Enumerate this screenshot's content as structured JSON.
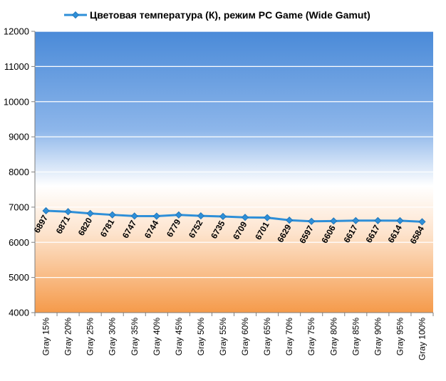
{
  "chart_data": {
    "type": "line",
    "title": "",
    "xlabel": "",
    "ylabel": "",
    "ylim": [
      4000,
      12000
    ],
    "y_ticks": [
      "4000",
      "5000",
      "6000",
      "7000",
      "8000",
      "9000",
      "10000",
      "11000",
      "12000"
    ],
    "grid": true,
    "legend_position": "top",
    "categories": [
      "Gray 15%",
      "Gray 20%",
      "Gray 25%",
      "Gray 30%",
      "Gray 35%",
      "Gray 40%",
      "Gray 45%",
      "Gray 50%",
      "Gray 55%",
      "Gray 60%",
      "Gray 65%",
      "Gray 70%",
      "Gray 75%",
      "Gray 80%",
      "Gray 85%",
      "Gray 90%",
      "Gray 95%",
      "Gray 100%"
    ],
    "series": [
      {
        "name": "Цветовая температура (К), режим PC Game (Wide Gamut)",
        "color": "#2e8fd8",
        "values": [
          6897,
          6871,
          6820,
          6781,
          6747,
          6744,
          6779,
          6752,
          6735,
          6709,
          6701,
          6629,
          6597,
          6606,
          6617,
          6617,
          6614,
          6584
        ]
      }
    ],
    "background_gradient": [
      "#4a8ad8",
      "#ffffff",
      "#f59a4a"
    ]
  }
}
